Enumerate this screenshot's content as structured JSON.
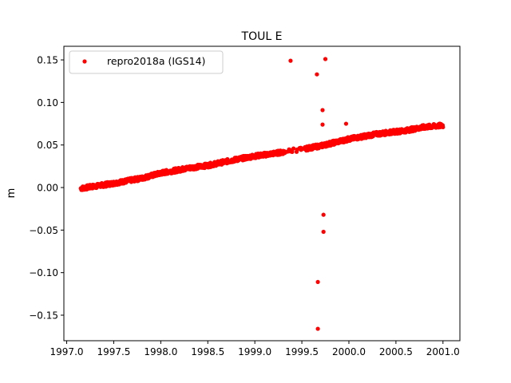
{
  "chart_data": {
    "type": "scatter",
    "title": "TOUL E",
    "xlabel": "",
    "ylabel": "m",
    "xlim": [
      1996.97,
      2001.18
    ],
    "ylim": [
      -0.18,
      0.166
    ],
    "x_ticks": [
      1997.0,
      1997.5,
      1998.0,
      1998.5,
      1999.0,
      1999.5,
      2000.0,
      2000.5,
      2001.0
    ],
    "x_tick_labels": [
      "1997.0",
      "1997.5",
      "1998.0",
      "1998.5",
      "1999.0",
      "1999.5",
      "2000.0",
      "2000.5",
      "2001.0"
    ],
    "y_ticks": [
      0.15,
      0.1,
      0.05,
      0.0,
      -0.05,
      -0.1,
      -0.15
    ],
    "y_tick_labels": [
      "0.15",
      "0.10",
      "0.05",
      "0.00",
      "−0.05",
      "−0.10",
      "−0.15"
    ],
    "grid": false,
    "legend_position": "top-left",
    "series": [
      {
        "name": "repro2018a (IGS14)",
        "color": "#ff0000",
        "marker": "dot",
        "trend": {
          "x_start": 1997.15,
          "x_end": 2001.0,
          "knots": [
            [
              1997.15,
              -0.001
            ],
            [
              1997.5,
              0.005
            ],
            [
              1997.8,
              0.011
            ],
            [
              1998.0,
              0.017
            ],
            [
              1998.3,
              0.023
            ],
            [
              1998.5,
              0.026
            ],
            [
              1998.8,
              0.033
            ],
            [
              1999.0,
              0.037
            ],
            [
              1999.2,
              0.04
            ],
            [
              1999.5,
              0.045
            ],
            [
              1999.7,
              0.049
            ],
            [
              1999.85,
              0.053
            ],
            [
              2000.0,
              0.057
            ],
            [
              2000.3,
              0.063
            ],
            [
              2000.6,
              0.067
            ],
            [
              2000.8,
              0.071
            ],
            [
              2001.0,
              0.073
            ]
          ],
          "scatter_amplitude": 0.0025
        },
        "outliers": [
          [
            1999.38,
            0.149
          ],
          [
            1999.75,
            0.151
          ],
          [
            1999.66,
            0.133
          ],
          [
            1999.72,
            0.091
          ],
          [
            1999.72,
            0.074
          ],
          [
            1999.97,
            0.075
          ],
          [
            1999.73,
            -0.032
          ],
          [
            1999.73,
            -0.052
          ],
          [
            1999.67,
            -0.111
          ],
          [
            1999.67,
            -0.166
          ]
        ]
      }
    ]
  }
}
